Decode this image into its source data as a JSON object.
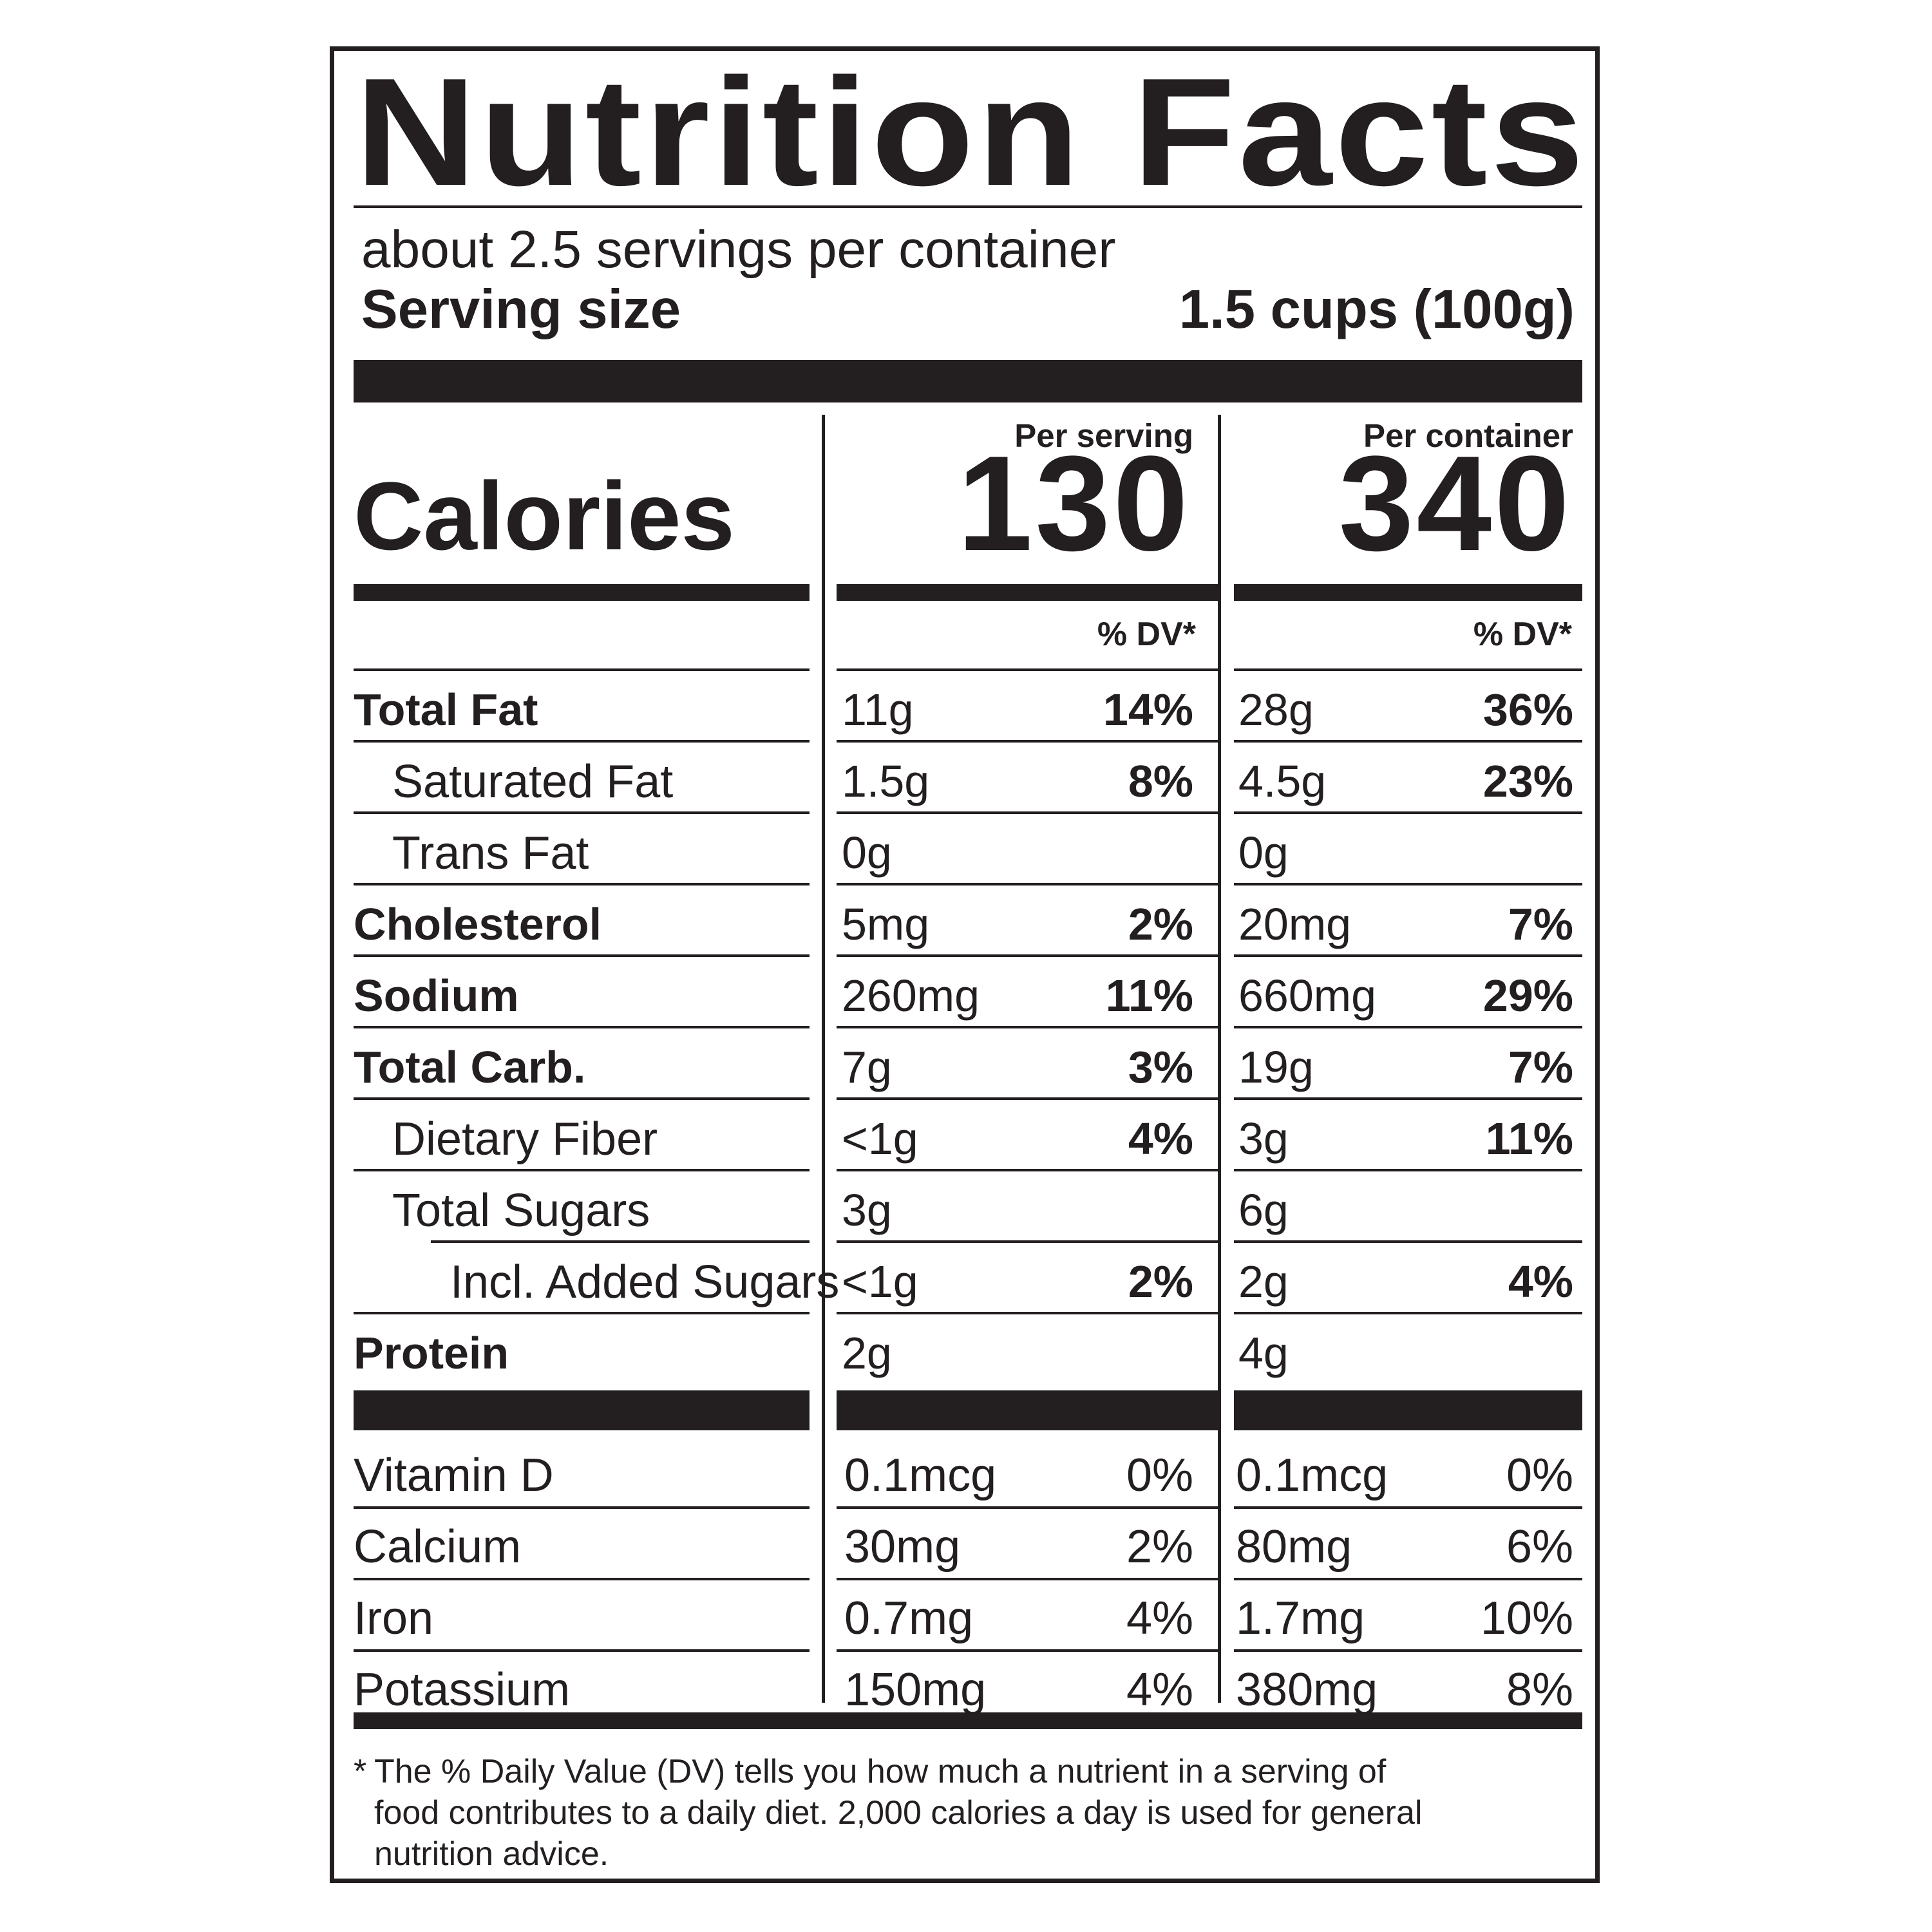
{
  "title": "Nutrition Facts",
  "servings_per_container": "about 2.5 servings per container",
  "serving_size": {
    "label": "Serving size",
    "value": "1.5 cups (100g)"
  },
  "calories": {
    "label": "Calories",
    "per_serving_label": "Per serving",
    "per_container_label": "Per container",
    "per_serving": "130",
    "per_container": "340"
  },
  "dv_header": "% DV*",
  "nutrients": [
    {
      "name": "Total Fat",
      "bold": true,
      "indent": 0,
      "serving_amount": "11g",
      "serving_dv": "14%",
      "container_amount": "28g",
      "container_dv": "36%"
    },
    {
      "name": "Saturated Fat",
      "bold": false,
      "indent": 1,
      "serving_amount": "1.5g",
      "serving_dv": "8%",
      "container_amount": "4.5g",
      "container_dv": "23%"
    },
    {
      "name": "Trans Fat",
      "bold": false,
      "indent": 1,
      "serving_amount": "0g",
      "serving_dv": "",
      "container_amount": "0g",
      "container_dv": ""
    },
    {
      "name": "Cholesterol",
      "bold": true,
      "indent": 0,
      "serving_amount": "5mg",
      "serving_dv": "2%",
      "container_amount": "20mg",
      "container_dv": "7%"
    },
    {
      "name": "Sodium",
      "bold": true,
      "indent": 0,
      "serving_amount": "260mg",
      "serving_dv": "11%",
      "container_amount": "660mg",
      "container_dv": "29%"
    },
    {
      "name": "Total Carb.",
      "bold": true,
      "indent": 0,
      "serving_amount": "7g",
      "serving_dv": "3%",
      "container_amount": "19g",
      "container_dv": "7%"
    },
    {
      "name": "Dietary Fiber",
      "bold": false,
      "indent": 1,
      "serving_amount": "<1g",
      "serving_dv": "4%",
      "container_amount": "3g",
      "container_dv": "11%"
    },
    {
      "name": "Total Sugars",
      "bold": false,
      "indent": 1,
      "serving_amount": "3g",
      "serving_dv": "",
      "container_amount": "6g",
      "container_dv": ""
    },
    {
      "name": "Incl. Added Sugars",
      "bold": false,
      "indent": 2,
      "serving_amount": "<1g",
      "serving_dv": "2%",
      "container_amount": "2g",
      "container_dv": "4%"
    },
    {
      "name": "Protein",
      "bold": true,
      "indent": 0,
      "serving_amount": "2g",
      "serving_dv": "",
      "container_amount": "4g",
      "container_dv": ""
    }
  ],
  "vitamins": [
    {
      "name": "Vitamin D",
      "serving_amount": "0.1mcg",
      "serving_dv": "0%",
      "container_amount": "0.1mcg",
      "container_dv": "0%"
    },
    {
      "name": "Calcium",
      "serving_amount": "30mg",
      "serving_dv": "2%",
      "container_amount": "80mg",
      "container_dv": "6%"
    },
    {
      "name": "Iron",
      "serving_amount": "0.7mg",
      "serving_dv": "4%",
      "container_amount": "1.7mg",
      "container_dv": "10%"
    },
    {
      "name": "Potassium",
      "serving_amount": "150mg",
      "serving_dv": "4%",
      "container_amount": "380mg",
      "container_dv": "8%"
    }
  ],
  "footnote": {
    "marker": "*",
    "lines": [
      "The % Daily Value (DV) tells you how much a nutrient in a serving of",
      "food contributes to a daily diet. 2,000 calories a day is used for general",
      "nutrition advice."
    ]
  }
}
